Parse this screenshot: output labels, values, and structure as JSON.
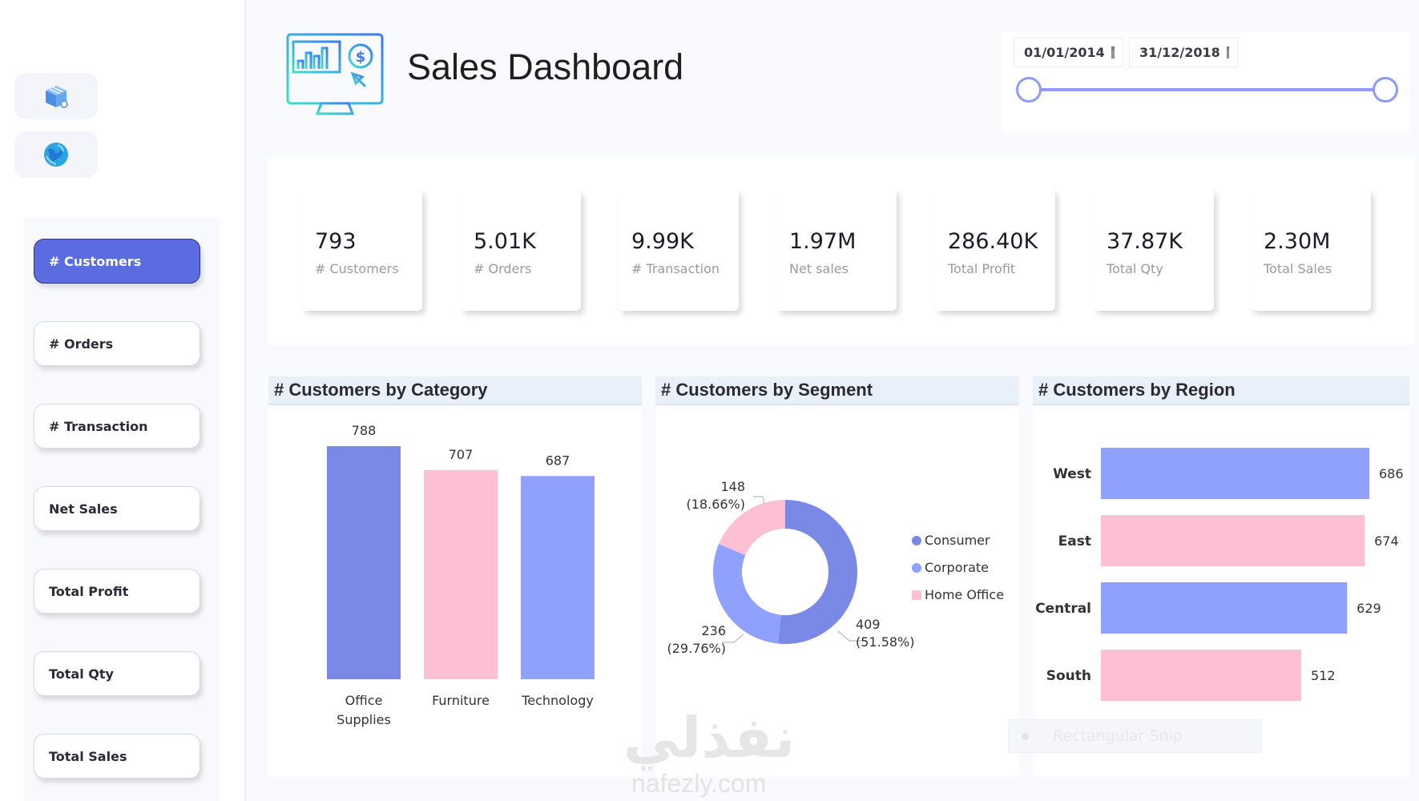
{
  "header": {
    "title": "Sales Dashboard",
    "date_start": "01/01/2014",
    "date_end": "31/12/2018",
    "date_range_fraction": [
      0,
      1
    ]
  },
  "sidebar": {
    "top_icons": [
      "box-icon",
      "globe-icon"
    ],
    "nav": [
      {
        "label": "# Customers",
        "active": true
      },
      {
        "label": "# Orders",
        "active": false
      },
      {
        "label": "# Transaction",
        "active": false
      },
      {
        "label": "Net Sales",
        "active": false
      },
      {
        "label": "Total Profit",
        "active": false
      },
      {
        "label": "Total Qty",
        "active": false
      },
      {
        "label": "Total Sales",
        "active": false
      }
    ]
  },
  "kpis": [
    {
      "value": "793",
      "label": "# Customers"
    },
    {
      "value": "5.01K",
      "label": "# Orders"
    },
    {
      "value": "9.99K",
      "label": "# Transaction"
    },
    {
      "value": "1.97M",
      "label": "Net sales"
    },
    {
      "value": "286.40K",
      "label": "Total Profit"
    },
    {
      "value": "37.87K",
      "label": "Total Qty"
    },
    {
      "value": "2.30M",
      "label": "Total Sales"
    }
  ],
  "colors": {
    "accent": "#5b6ce0",
    "blue_dark": "#7b89e6",
    "blue_light": "#8fa0fd",
    "pink": "#fdbfd3",
    "slider": "#8c9cf7"
  },
  "chart_data": [
    {
      "type": "bar",
      "title": "# Customers by Category",
      "categories": [
        "Office Supplies",
        "Furniture",
        "Technology"
      ],
      "category_lines": [
        [
          "Office",
          "Supplies"
        ],
        [
          "Furniture"
        ],
        [
          "Technology"
        ]
      ],
      "values": [
        788,
        707,
        687
      ],
      "value_labels": [
        "788",
        "707",
        "687"
      ],
      "colors": [
        "#7b89e6",
        "#fdbfd3",
        "#8fa0fd"
      ],
      "ylim": [
        0,
        788
      ],
      "xlabel": "",
      "ylabel": "",
      "grid": false
    },
    {
      "type": "pie",
      "title": "# Customers by Segment",
      "categories": [
        "Consumer",
        "Corporate",
        "Home Office"
      ],
      "values": [
        409,
        236,
        148
      ],
      "percent_labels": [
        "(51.58%)",
        "(29.76%)",
        "(18.66%)"
      ],
      "value_labels": [
        "409",
        "236",
        "148"
      ],
      "colors": [
        "#7b89e6",
        "#8fa0fd",
        "#fdbfd3"
      ],
      "legend": "right",
      "donut": true
    },
    {
      "type": "bar",
      "orientation": "horizontal",
      "title": "# Customers by Region",
      "categories": [
        "West",
        "East",
        "Central",
        "South"
      ],
      "values": [
        686,
        674,
        629,
        512
      ],
      "value_labels": [
        "686",
        "674",
        "629",
        "512"
      ],
      "colors": [
        "#8fa0fd",
        "#fdbfd3",
        "#8fa0fd",
        "#fdbfd3"
      ],
      "xlim": [
        0,
        686
      ],
      "grid": false
    }
  ],
  "watermark": {
    "arabic": "نفذلي",
    "latin": "nafezly.com"
  },
  "overlay": {
    "snip_label": "Rectangular Snip"
  }
}
